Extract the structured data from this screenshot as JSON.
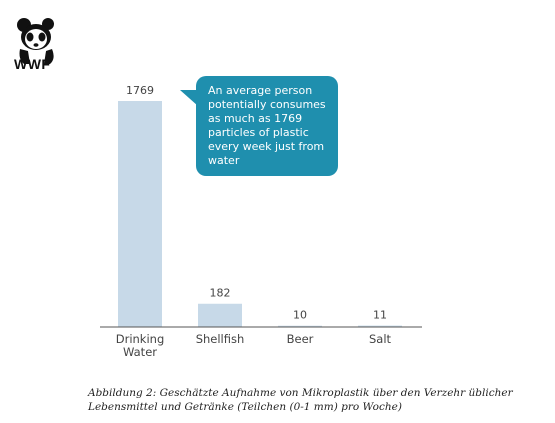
{
  "logo": {
    "text": "WWF"
  },
  "annotation": {
    "text": "An average person potentially consumes as much as 1769 particles of plastic every week just from water"
  },
  "caption": {
    "text": "Abbildung 2: Geschätzte Aufnahme von Mikroplastik über den Verzehr üblicher Lebensmittel und Getränke (Teilchen (0-1 mm) pro Woche)"
  },
  "colors": {
    "bar": "#c7d9e8",
    "callout": "#1f8fae",
    "axis": "#555555"
  },
  "chart_data": {
    "type": "bar",
    "categories": [
      "Drinking Water",
      "Shellfish",
      "Beer",
      "Salt"
    ],
    "category_lines": [
      [
        "Drinking",
        "Water"
      ],
      [
        "Shellfish"
      ],
      [
        "Beer"
      ],
      [
        "Salt"
      ]
    ],
    "values": [
      1769,
      182,
      10,
      11
    ],
    "value_labels": [
      "1769",
      "182",
      "10",
      "11"
    ],
    "title": "",
    "xlabel": "",
    "ylabel": "",
    "ylim": [
      0,
      1769
    ],
    "grid": false,
    "legend": "none"
  }
}
